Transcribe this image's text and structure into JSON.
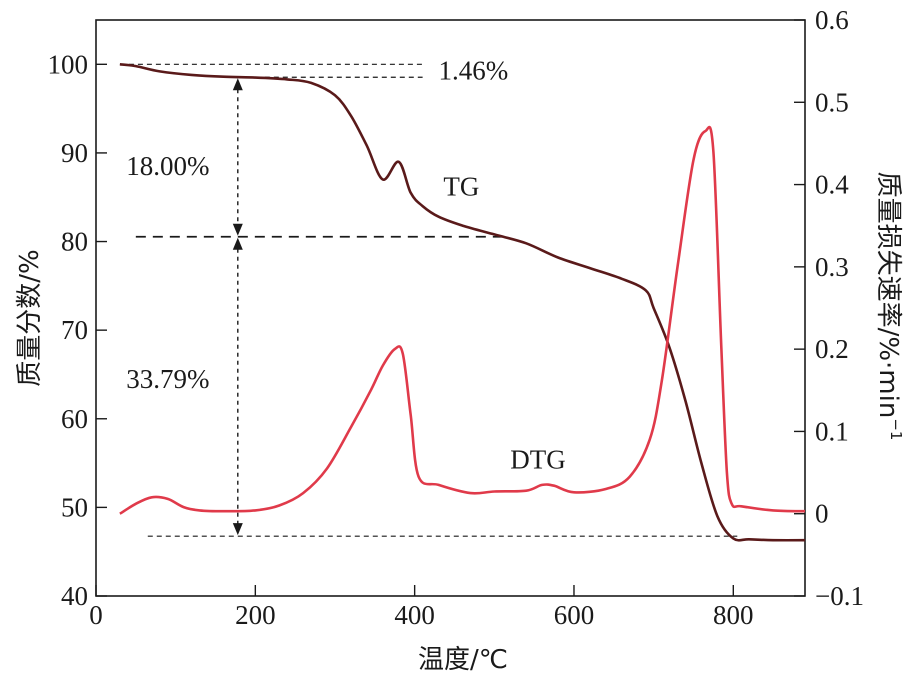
{
  "chart_data": {
    "type": "line",
    "xlabel": "温度/℃",
    "ylabel_left": "质量分数/%",
    "ylabel_right": "质量损失速率/%·min",
    "ylabel_right_sup": "−1",
    "xlim": [
      0,
      890
    ],
    "ylim_left": [
      40,
      105
    ],
    "ylim_right": [
      -0.1,
      0.6
    ],
    "x_ticks": [
      0,
      200,
      400,
      600,
      800
    ],
    "y_left_ticks": [
      40,
      50,
      60,
      70,
      80,
      90,
      100
    ],
    "y_right_ticks": [
      -0.1,
      0,
      0.1,
      0.2,
      0.3,
      0.4,
      0.5,
      0.6
    ],
    "y_right_tick_labels": [
      "−0.1",
      "0",
      "0.1",
      "0.2",
      "0.3",
      "0.4",
      "0.5",
      "0.6"
    ],
    "colors": {
      "TG": "#5a1a1a",
      "DTG": "#e03a4a",
      "axis": "#1a1a1a"
    },
    "series": [
      {
        "name": "TG",
        "axis": "left",
        "x": [
          30,
          50,
          80,
          120,
          160,
          200,
          240,
          270,
          300,
          320,
          340,
          360,
          380,
          395,
          410,
          430,
          460,
          500,
          540,
          580,
          620,
          660,
          690,
          700,
          720,
          740,
          760,
          780,
          800,
          820,
          850,
          890
        ],
        "y": [
          100,
          99.8,
          99.2,
          98.8,
          98.6,
          98.5,
          98.3,
          97.9,
          96.5,
          94.2,
          90.8,
          87.0,
          89.0,
          85.5,
          84.0,
          82.8,
          81.8,
          80.8,
          79.8,
          78.2,
          77.0,
          75.8,
          74.5,
          72.5,
          68.0,
          62.0,
          55.0,
          49.0,
          46.5,
          46.4,
          46.3,
          46.3
        ]
      },
      {
        "name": "DTG",
        "axis": "right",
        "x": [
          30,
          50,
          70,
          90,
          110,
          130,
          160,
          200,
          230,
          260,
          290,
          320,
          345,
          360,
          375,
          385,
          395,
          405,
          430,
          470,
          500,
          540,
          560,
          575,
          600,
          640,
          670,
          695,
          710,
          730,
          750,
          765,
          775,
          785,
          792,
          798,
          810,
          850,
          890
        ],
        "y": [
          0.0,
          0.012,
          0.02,
          0.018,
          0.008,
          0.004,
          0.003,
          0.004,
          0.01,
          0.025,
          0.055,
          0.105,
          0.15,
          0.18,
          0.2,
          0.195,
          0.12,
          0.045,
          0.035,
          0.025,
          0.027,
          0.028,
          0.035,
          0.034,
          0.026,
          0.03,
          0.045,
          0.09,
          0.16,
          0.3,
          0.43,
          0.465,
          0.44,
          0.2,
          0.05,
          0.012,
          0.009,
          0.004,
          0.003
        ]
      }
    ],
    "series_labels": {
      "TG": "TG",
      "DTG": "DTG"
    },
    "annotations": [
      {
        "text": "1.46%",
        "x_ref": 30,
        "y_from": 100,
        "y_to": 98.54
      },
      {
        "text": "18.00%",
        "x_ref": 178,
        "y_from": 98.54,
        "y_to": 80.54
      },
      {
        "text": "33.79%",
        "x_ref": 178,
        "y_from": 80.54,
        "y_to": 46.75
      }
    ],
    "grid": false,
    "legend": "none"
  }
}
